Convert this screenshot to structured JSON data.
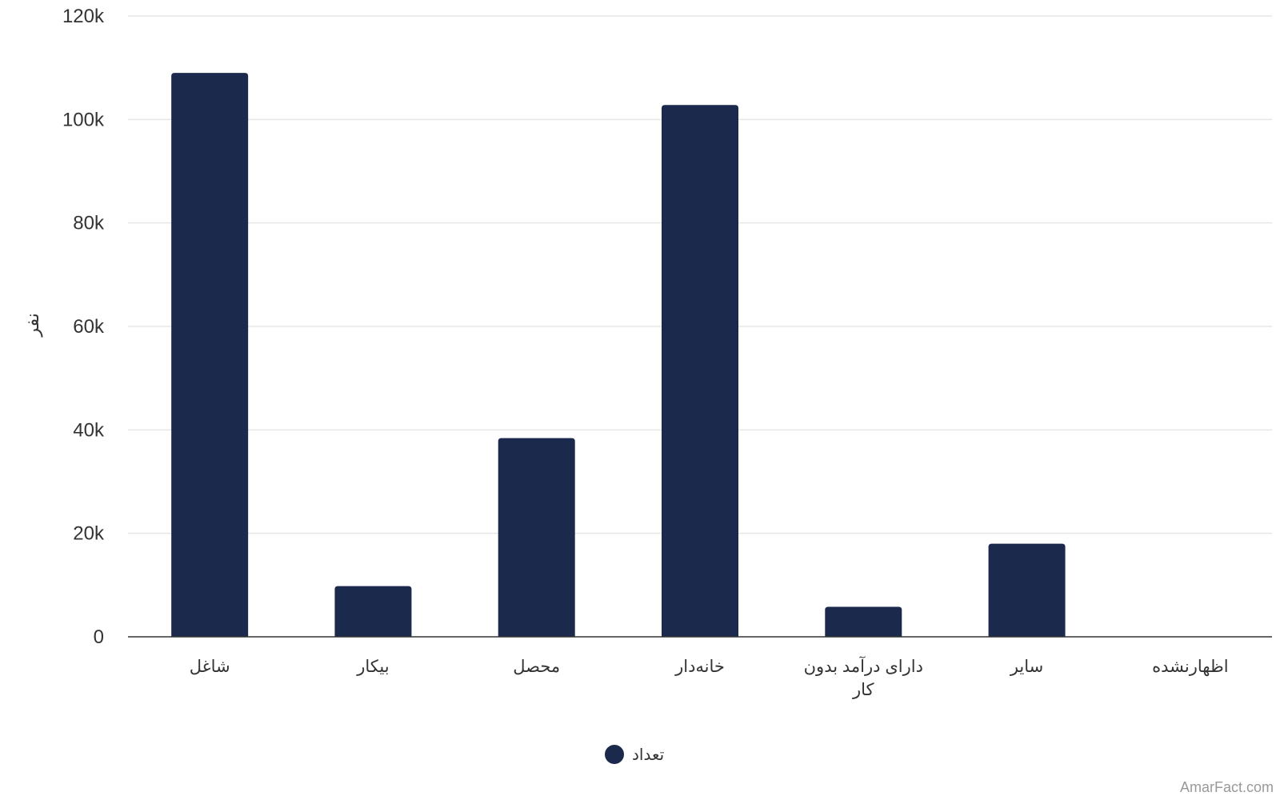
{
  "chart_data": {
    "type": "bar",
    "categories": [
      "شاغل",
      "بیکار",
      "محصل",
      "خانه‌دار",
      "دارای درآمد بدون کار",
      "سایر",
      "اظهارنشده"
    ],
    "series": [
      {
        "name": "تعداد",
        "values": [
          109000,
          9800,
          38400,
          102800,
          5800,
          18000,
          0
        ]
      }
    ],
    "ylabel": "نفر",
    "xlabel": "",
    "ylim": [
      0,
      120000
    ],
    "yticks": [
      0,
      20000,
      40000,
      60000,
      80000,
      100000,
      120000
    ],
    "ytick_labels": [
      "0",
      "20k",
      "40k",
      "60k",
      "80k",
      "100k",
      "120k"
    ],
    "grid": true,
    "legend_position": "bottom-center",
    "colors": {
      "bar": "#1b2a4c",
      "grid": "#e6e6e6",
      "axis": "#333333"
    }
  },
  "credit": "AmarFact.com"
}
